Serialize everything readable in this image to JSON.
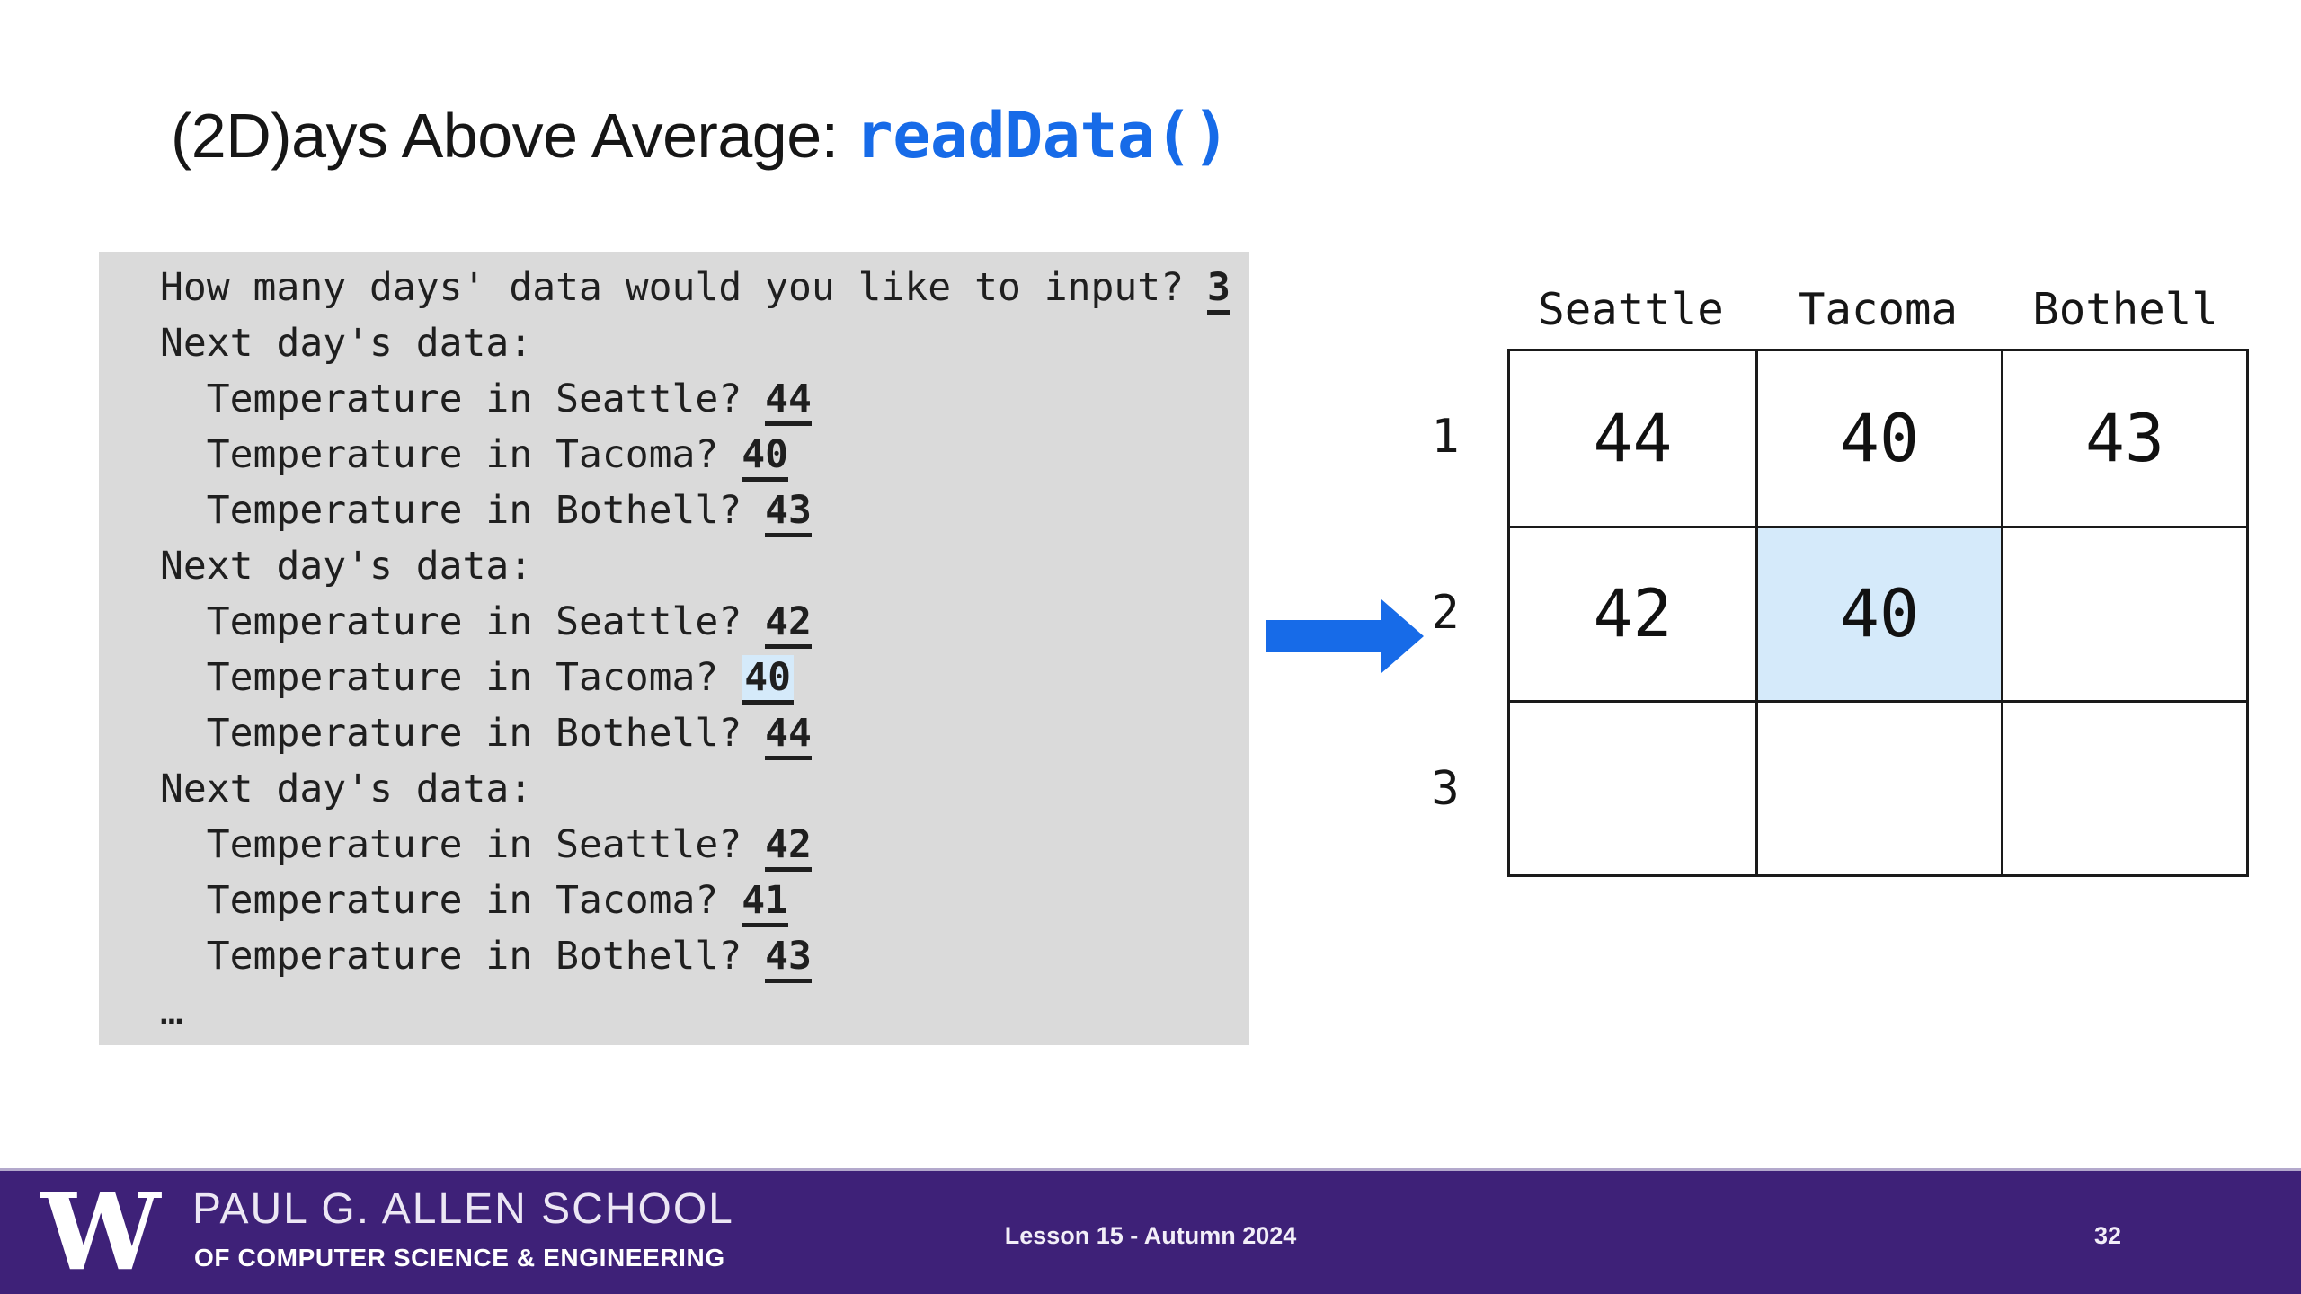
{
  "title": {
    "prefix": "(2D)ays Above Average: ",
    "code": "readData()"
  },
  "console": {
    "lines": [
      {
        "prompt": "How many days' data would you like to input? ",
        "input": "3",
        "highlight": false
      },
      {
        "prompt": "Next day's data:",
        "input": null,
        "highlight": false
      },
      {
        "prompt": "  Temperature in Seattle? ",
        "input": "44",
        "highlight": false
      },
      {
        "prompt": "  Temperature in Tacoma? ",
        "input": "40",
        "highlight": false
      },
      {
        "prompt": "  Temperature in Bothell? ",
        "input": "43",
        "highlight": false
      },
      {
        "prompt": "Next day's data:",
        "input": null,
        "highlight": false
      },
      {
        "prompt": "  Temperature in Seattle? ",
        "input": "42",
        "highlight": false
      },
      {
        "prompt": "  Temperature in Tacoma? ",
        "input": "40",
        "highlight": true
      },
      {
        "prompt": "  Temperature in Bothell? ",
        "input": "44",
        "highlight": false
      },
      {
        "prompt": "Next day's data:",
        "input": null,
        "highlight": false
      },
      {
        "prompt": "  Temperature in Seattle? ",
        "input": "42",
        "highlight": false
      },
      {
        "prompt": "  Temperature in Tacoma? ",
        "input": "41",
        "highlight": false
      },
      {
        "prompt": "  Temperature in Bothell? ",
        "input": "43",
        "highlight": false
      },
      {
        "prompt": "…",
        "input": null,
        "highlight": false
      }
    ]
  },
  "table": {
    "column_headers": [
      "Seattle",
      "Tacoma",
      "Bothell"
    ],
    "row_labels": [
      "1",
      "2",
      "3"
    ],
    "rows": [
      [
        "44",
        "40",
        "43"
      ],
      [
        "42",
        "40",
        ""
      ],
      [
        "",
        "",
        ""
      ]
    ],
    "highlighted_cell": {
      "row_index": 1,
      "col_index": 1
    }
  },
  "arrow": {
    "points_to_row": "2"
  },
  "footer": {
    "logo_w": "W",
    "school_line1": "PAUL G. ALLEN SCHOOL",
    "school_line2": "OF COMPUTER SCIENCE & ENGINEERING",
    "lesson": "Lesson 15 - Autumn 2024",
    "page_number": "32"
  },
  "colors": {
    "accent_blue": "#176be8",
    "highlight_blue": "#d5eafa",
    "console_background": "#dadada",
    "footer_purple": "#3e2178",
    "table_border": "#1a1a1a"
  }
}
